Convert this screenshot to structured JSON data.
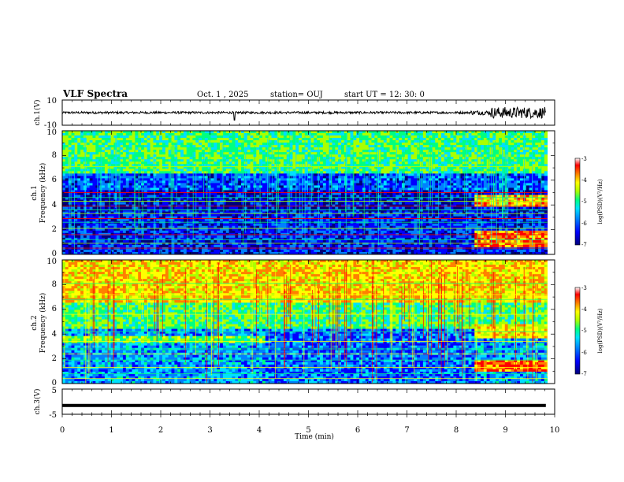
{
  "header": {
    "title": "VLF Spectra",
    "date": "Oct. 1  , 2025",
    "station": "station= OUJ",
    "start": "start  UT  =   12: 30: 0"
  },
  "axes": {
    "x_label": "Time  (min)",
    "x_ticks": [
      "0",
      "1",
      "2",
      "3",
      "4",
      "5",
      "6",
      "7",
      "8",
      "9",
      "10"
    ],
    "ch1_wave_label": "ch.1(V)",
    "ch1_wave_ticks": [
      "10",
      "-10"
    ],
    "ch1_spec_label_line1": "ch.1",
    "ch1_spec_label_line2": "Frequency  (kHz)",
    "ch2_spec_label_line1": "ch.2",
    "ch2_spec_label_line2": "Frequency  (kHz)",
    "freq_ticks": [
      "0",
      "2",
      "4",
      "6",
      "8",
      "10"
    ],
    "ch3_label": "ch.3(V)",
    "ch3_ticks": [
      "5",
      "-5"
    ],
    "colorbar_ticks": [
      "-3",
      "-4",
      "-5",
      "-6",
      "-7"
    ],
    "colorbar_label": "log(PSD)(V²/Hz)"
  },
  "chart_data": [
    {
      "type": "line",
      "name": "ch1-waveform",
      "ylabel": "ch.1(V)",
      "xlim": [
        0,
        10
      ],
      "ylim": [
        -10,
        10
      ],
      "baseline": 0,
      "burst_window": [
        8.7,
        9.8
      ]
    },
    {
      "type": "heatmap",
      "name": "ch1-spectrogram",
      "xlabel": "Time  (min)",
      "ylabel": "Frequency  (kHz)",
      "xlim": [
        0,
        9.85
      ],
      "ylim": [
        0,
        10
      ],
      "zlim": [
        -7,
        -3
      ],
      "colormap": [
        "#00007a",
        "#0000ff",
        "#0080ff",
        "#00e0ff",
        "#00ff80",
        "#aaff00",
        "#ffff00",
        "#ff8000",
        "#ff0000",
        "#ffffff"
      ]
    },
    {
      "type": "heatmap",
      "name": "ch2-spectrogram",
      "xlabel": "Time  (min)",
      "ylabel": "Frequency  (kHz)",
      "xlim": [
        0,
        9.85
      ],
      "ylim": [
        0,
        10
      ],
      "zlim": [
        -7,
        -3
      ],
      "colormap": [
        "#00007a",
        "#0000ff",
        "#0080ff",
        "#00e0ff",
        "#00ff80",
        "#aaff00",
        "#ffff00",
        "#ff8000",
        "#ff0000",
        "#ffffff"
      ]
    },
    {
      "type": "line",
      "name": "ch3-trace",
      "ylabel": "ch.3(V)",
      "xlim": [
        0,
        10
      ],
      "ylim": [
        -5,
        5
      ],
      "constant_value": -1.5
    }
  ]
}
